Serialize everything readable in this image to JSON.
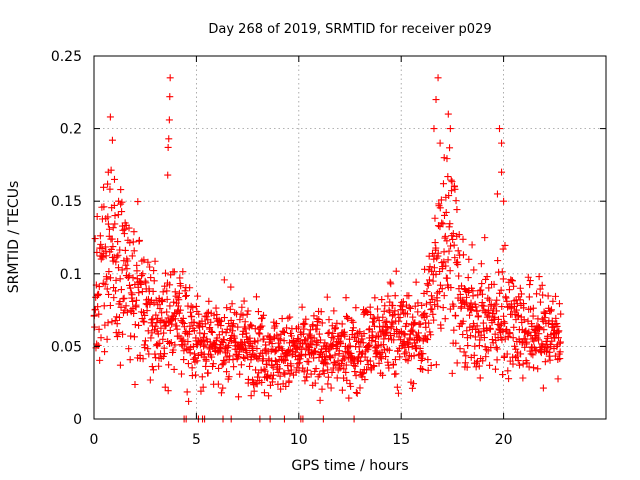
{
  "chart_data": {
    "type": "scatter",
    "title": "Day 268 of 2019, SRMTID for receiver p029",
    "xlabel": "GPS time / hours",
    "ylabel": "SRMTID / TECUs",
    "xlim": [
      0,
      25
    ],
    "ylim": [
      0,
      0.25
    ],
    "x_ticks": [
      0,
      5,
      10,
      15,
      20
    ],
    "y_ticks": [
      0,
      0.05,
      0.1,
      0.15,
      0.2,
      0.25
    ],
    "x_tick_labels": [
      "0",
      "5",
      "10",
      "15",
      "20"
    ],
    "y_tick_labels": [
      "0",
      "0.05",
      "0.1",
      "0.15",
      "0.2",
      "0.25"
    ],
    "grid": true,
    "marker": "plus",
    "color": "#ff0000",
    "series": [
      {
        "name": "SRMTID",
        "trend": [
          [
            0,
            0.095
          ],
          [
            0.5,
            0.105
          ],
          [
            1,
            0.11
          ],
          [
            1.5,
            0.095
          ],
          [
            2,
            0.085
          ],
          [
            2.5,
            0.07
          ],
          [
            3,
            0.068
          ],
          [
            3.5,
            0.07
          ],
          [
            4,
            0.068
          ],
          [
            4.5,
            0.062
          ],
          [
            5,
            0.06
          ],
          [
            5.5,
            0.055
          ],
          [
            6,
            0.055
          ],
          [
            7,
            0.052
          ],
          [
            8,
            0.05
          ],
          [
            9,
            0.045
          ],
          [
            10,
            0.045
          ],
          [
            11,
            0.048
          ],
          [
            12,
            0.045
          ],
          [
            13,
            0.05
          ],
          [
            14,
            0.055
          ],
          [
            14.5,
            0.065
          ],
          [
            15,
            0.06
          ],
          [
            15.5,
            0.055
          ],
          [
            16,
            0.06
          ],
          [
            16.5,
            0.08
          ],
          [
            17,
            0.13
          ],
          [
            17.5,
            0.12
          ],
          [
            18,
            0.07
          ],
          [
            19,
            0.07
          ],
          [
            19.5,
            0.065
          ],
          [
            20,
            0.075
          ],
          [
            20.5,
            0.07
          ],
          [
            21,
            0.06
          ],
          [
            22,
            0.06
          ],
          [
            22.8,
            0.06
          ]
        ],
        "spikes": [
          [
            0.7,
            0.17
          ],
          [
            0.8,
            0.208
          ],
          [
            0.9,
            0.192
          ],
          [
            1.0,
            0.165
          ],
          [
            1.3,
            0.148
          ],
          [
            1.2,
            0.15
          ],
          [
            3.6,
            0.168
          ],
          [
            3.62,
            0.187
          ],
          [
            3.65,
            0.193
          ],
          [
            3.68,
            0.206
          ],
          [
            3.7,
            0.222
          ],
          [
            3.72,
            0.235
          ],
          [
            16.6,
            0.2
          ],
          [
            16.7,
            0.22
          ],
          [
            16.8,
            0.235
          ],
          [
            16.9,
            0.19
          ],
          [
            17.1,
            0.18
          ],
          [
            17.3,
            0.21
          ],
          [
            17.4,
            0.2
          ],
          [
            17.6,
            0.16
          ],
          [
            19.8,
            0.2
          ],
          [
            19.9,
            0.19
          ],
          [
            19.9,
            0.17
          ],
          [
            20.0,
            0.15
          ],
          [
            19.7,
            0.155
          ]
        ],
        "zeros": [
          4.4,
          4.5,
          5.1,
          5.3,
          5.4,
          6.3,
          6.7,
          8.1,
          8.6,
          9.3,
          10.1,
          10.2,
          11.2,
          12.7
        ]
      }
    ]
  }
}
